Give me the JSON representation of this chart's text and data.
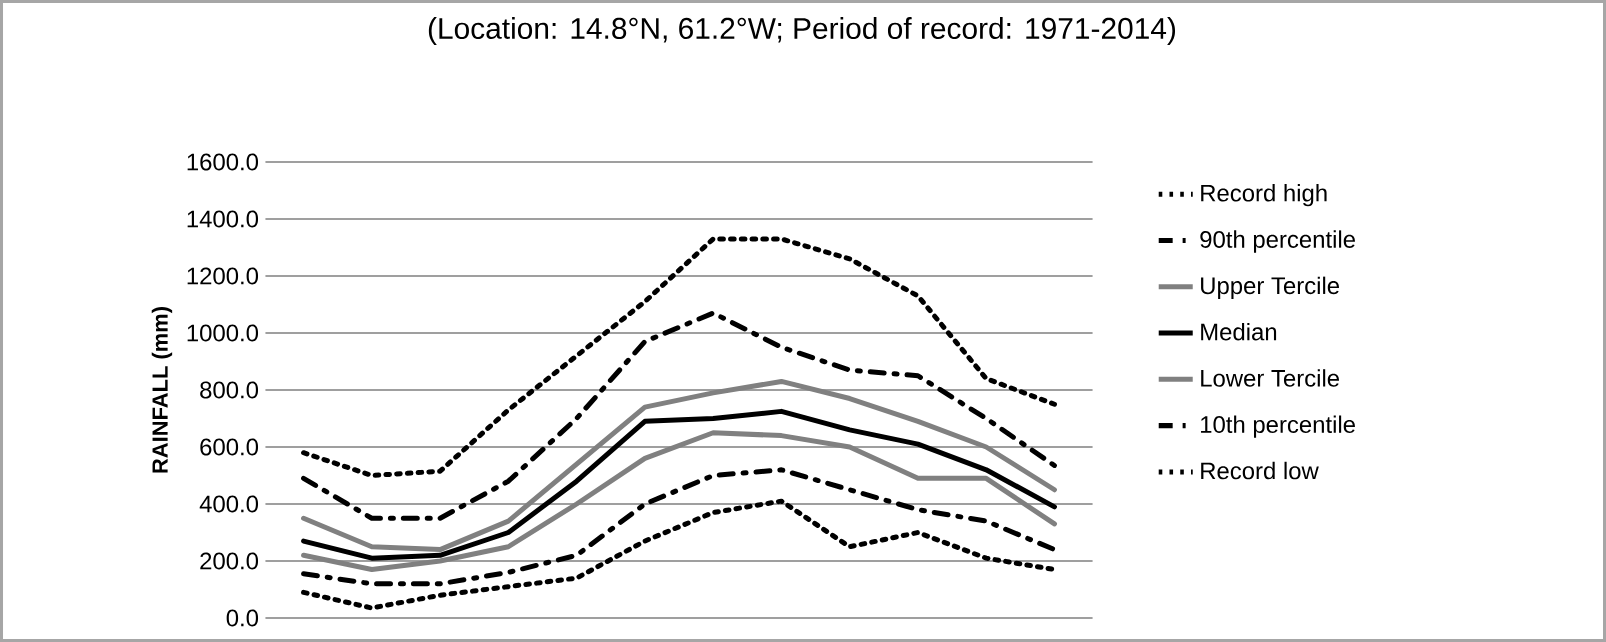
{
  "chart_data": {
    "type": "line",
    "title": "(Location: 14.8°N, 61.2°W; Period of record: 1971-2014)",
    "ylabel": "RAINFALL (mm)",
    "categories": [
      null,
      null,
      null,
      null,
      null,
      null,
      null,
      null,
      null,
      null,
      null,
      null
    ],
    "series": [
      {
        "name": "Record high",
        "color": "#000000",
        "line_style": "dotted",
        "values": [
          580,
          500,
          515,
          730,
          920,
          1110,
          1330,
          1330,
          1260,
          1130,
          840,
          750
        ]
      },
      {
        "name": "90th percentile",
        "color": "#000000",
        "line_style": "dashed",
        "values": [
          490,
          350,
          350,
          480,
          700,
          970,
          1070,
          950,
          870,
          850,
          700,
          535
        ]
      },
      {
        "name": "Upper Tercile",
        "color": "#808080",
        "line_style": "solid",
        "values": [
          350,
          250,
          240,
          340,
          540,
          740,
          790,
          830,
          770,
          690,
          600,
          450
        ]
      },
      {
        "name": "Median",
        "color": "#000000",
        "line_style": "solid",
        "values": [
          270,
          210,
          220,
          300,
          480,
          690,
          700,
          725,
          660,
          610,
          520,
          390
        ]
      },
      {
        "name": "Lower Tercile",
        "color": "#808080",
        "line_style": "solid",
        "values": [
          220,
          170,
          200,
          250,
          400,
          560,
          650,
          640,
          600,
          490,
          490,
          330
        ]
      },
      {
        "name": "10th percentile",
        "color": "#000000",
        "line_style": "dashed",
        "values": [
          155,
          120,
          120,
          160,
          220,
          400,
          500,
          520,
          450,
          380,
          340,
          240
        ]
      },
      {
        "name": "Record low",
        "color": "#000000",
        "line_style": "dotted",
        "values": [
          90,
          35,
          80,
          110,
          140,
          270,
          370,
          410,
          250,
          300,
          210,
          170
        ]
      }
    ],
    "ylim": [
      0,
      1600
    ],
    "yticks": [
      {
        "value": 0,
        "label": "0.0"
      },
      {
        "value": 200,
        "label": "200.0"
      },
      {
        "value": 400,
        "label": "400.0"
      },
      {
        "value": 600,
        "label": "600.0"
      },
      {
        "value": 800,
        "label": "800.0"
      },
      {
        "value": 1000,
        "label": "1000.0"
      },
      {
        "value": 1200,
        "label": "1200.0"
      },
      {
        "value": 1400,
        "label": "1400.0"
      },
      {
        "value": 1600,
        "label": "1600.0"
      }
    ],
    "grid": "y",
    "legend": "right",
    "tick_labels": "y",
    "marker": "none"
  }
}
